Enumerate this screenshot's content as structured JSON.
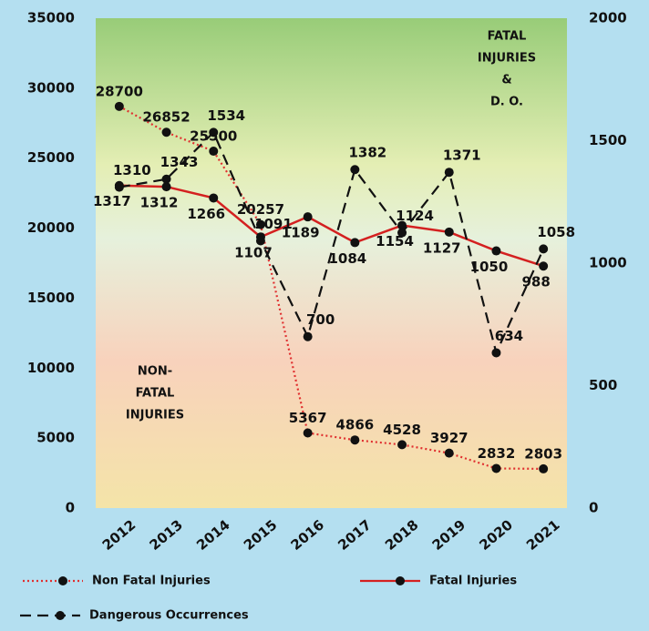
{
  "chart_data": {
    "type": "line",
    "categories": [
      "2012",
      "2013",
      "2014",
      "2015",
      "2016",
      "2017",
      "2018",
      "2019",
      "2020",
      "2021"
    ],
    "series": [
      {
        "name": "Non Fatal Injuries",
        "color": "#e03030",
        "style": "dotted",
        "axis": "y",
        "values": [
          28700,
          26852,
          25500,
          20257,
          5367,
          4866,
          4528,
          3927,
          2832,
          2803
        ]
      },
      {
        "name": "Fatal Injuries",
        "color": "#d42020",
        "style": "solid",
        "axis": "y2",
        "values": [
          1317,
          1312,
          1266,
          1107,
          1189,
          1084,
          1154,
          1127,
          1050,
          988
        ]
      },
      {
        "name": "Dangerous Occurrences",
        "color": "#111111",
        "style": "dashed",
        "axis": "y2",
        "values": [
          1310,
          1343,
          1534,
          1091,
          700,
          1382,
          1124,
          1371,
          634,
          1058
        ]
      }
    ],
    "ylim": [
      0,
      35000
    ],
    "yticks": [
      0,
      5000,
      10000,
      15000,
      20000,
      25000,
      30000,
      35000
    ],
    "y2lim": [
      0,
      2000
    ],
    "y2ticks": [
      0,
      500,
      1000,
      1500,
      2000
    ],
    "annotations": [
      {
        "lines": [
          "FATAL",
          "INJURIES",
          "&",
          "D. O."
        ]
      },
      {
        "lines": [
          "NON-",
          "FATAL",
          "INJURIES"
        ]
      }
    ]
  }
}
